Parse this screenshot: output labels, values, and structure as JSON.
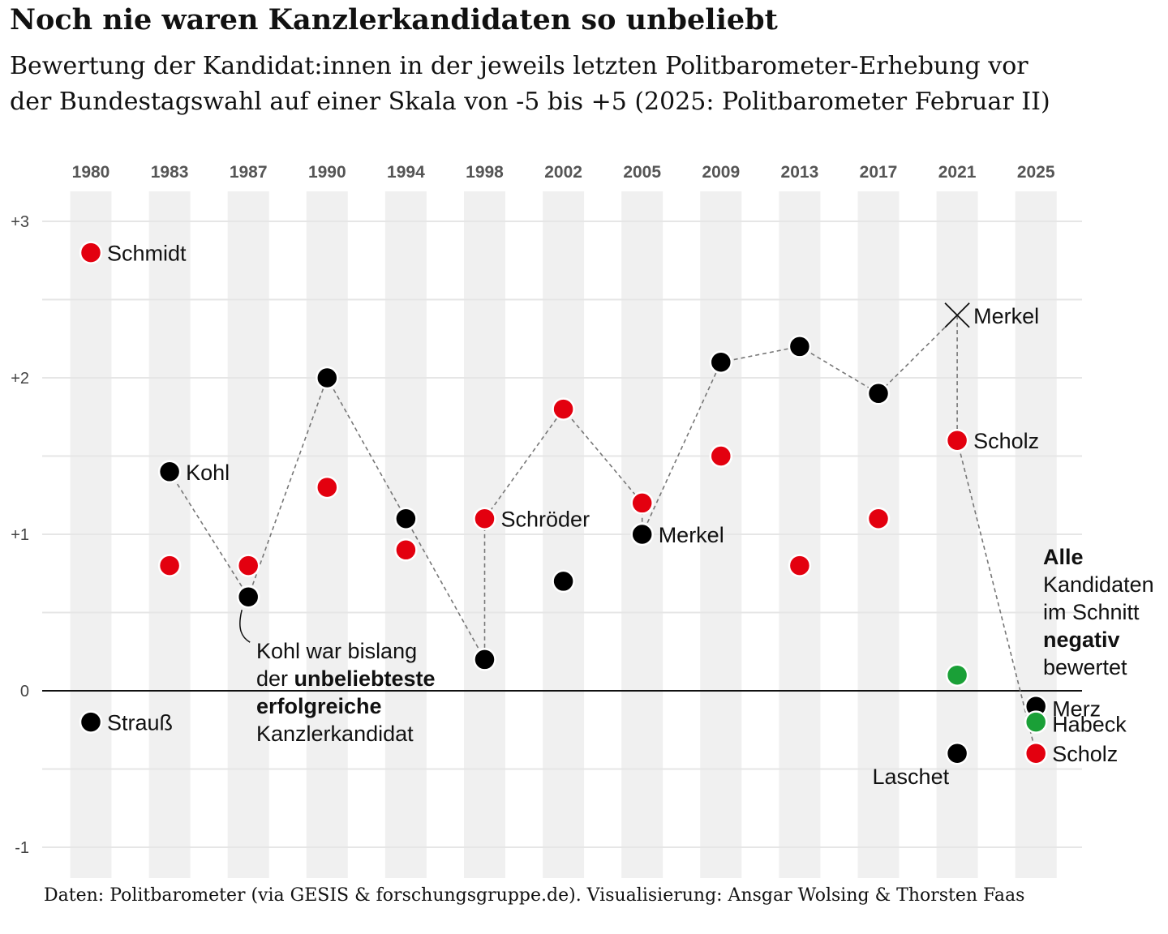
{
  "chart_data": {
    "type": "scatter",
    "title": "Noch nie waren Kanzlerkandidaten so unbeliebt",
    "subtitle": "Bewertung der Kandidat:innen in der jeweils letzten Politbarometer-Erhebung vor der Bundestagswahl auf einer Skala von -5 bis +5 (2025: Politbarometer Februar II)",
    "caption": "Daten: Politbarometer (via GESIS & forschungsgruppe.de). Visualisierung: Ansgar Wolsing & Thorsten Faas",
    "ylim": [
      -1.2,
      3.2
    ],
    "yticks": [
      {
        "value": 3,
        "label": "+3"
      },
      {
        "value": 2,
        "label": "+2"
      },
      {
        "value": 1,
        "label": "+1"
      },
      {
        "value": 0,
        "label": "0"
      },
      {
        "value": -1,
        "label": "-1"
      }
    ],
    "years": [
      "1980",
      "1983",
      "1987",
      "1990",
      "1994",
      "1998",
      "2002",
      "2005",
      "2009",
      "2013",
      "2017",
      "2021",
      "2025"
    ],
    "colors": {
      "cdu": "#000000",
      "spd": "#e3000f",
      "gruene": "#1aa037",
      "stripe": "#f0f0f0",
      "connector": "#777777"
    },
    "points": [
      {
        "year": "1980",
        "value": 2.8,
        "party": "spd",
        "label": "Schmidt"
      },
      {
        "year": "1980",
        "value": -0.2,
        "party": "cdu",
        "label": "Strauß"
      },
      {
        "year": "1983",
        "value": 1.4,
        "party": "cdu",
        "label": "Kohl"
      },
      {
        "year": "1983",
        "value": 0.8,
        "party": "spd",
        "label": ""
      },
      {
        "year": "1987",
        "value": 0.8,
        "party": "spd",
        "label": ""
      },
      {
        "year": "1987",
        "value": 0.6,
        "party": "cdu",
        "label": ""
      },
      {
        "year": "1990",
        "value": 2.0,
        "party": "cdu",
        "label": ""
      },
      {
        "year": "1990",
        "value": 1.3,
        "party": "spd",
        "label": ""
      },
      {
        "year": "1994",
        "value": 1.1,
        "party": "cdu",
        "label": ""
      },
      {
        "year": "1994",
        "value": 0.9,
        "party": "spd",
        "label": ""
      },
      {
        "year": "1998",
        "value": 1.1,
        "party": "spd",
        "label": "Schröder"
      },
      {
        "year": "1998",
        "value": 0.2,
        "party": "cdu",
        "label": ""
      },
      {
        "year": "2002",
        "value": 1.8,
        "party": "spd",
        "label": ""
      },
      {
        "year": "2002",
        "value": 0.7,
        "party": "cdu",
        "label": ""
      },
      {
        "year": "2005",
        "value": 1.2,
        "party": "spd",
        "label": ""
      },
      {
        "year": "2005",
        "value": 1.0,
        "party": "cdu",
        "label": "Merkel"
      },
      {
        "year": "2009",
        "value": 2.1,
        "party": "cdu",
        "label": ""
      },
      {
        "year": "2009",
        "value": 1.5,
        "party": "spd",
        "label": ""
      },
      {
        "year": "2013",
        "value": 2.2,
        "party": "cdu",
        "label": ""
      },
      {
        "year": "2013",
        "value": 0.8,
        "party": "spd",
        "label": ""
      },
      {
        "year": "2017",
        "value": 1.9,
        "party": "cdu",
        "label": ""
      },
      {
        "year": "2017",
        "value": 1.1,
        "party": "spd",
        "label": ""
      },
      {
        "year": "2021",
        "value": 1.6,
        "party": "spd",
        "label": "Scholz"
      },
      {
        "year": "2021",
        "value": 0.1,
        "party": "gruene",
        "label": ""
      },
      {
        "year": "2021",
        "value": -0.4,
        "party": "cdu",
        "label": "Laschet"
      },
      {
        "year": "2025",
        "value": -0.1,
        "party": "cdu",
        "label": "Merz"
      },
      {
        "year": "2025",
        "value": -0.2,
        "party": "gruene",
        "label": "Habeck"
      },
      {
        "year": "2025",
        "value": -0.4,
        "party": "spd",
        "label": "Scholz"
      }
    ],
    "cross_marker": {
      "year": "2021",
      "value": 2.4,
      "label": "Merkel"
    },
    "chancellor_path": [
      {
        "year": "1983",
        "value": 1.4
      },
      {
        "year": "1987",
        "value": 0.6
      },
      {
        "year": "1990",
        "value": 2.0
      },
      {
        "year": "1994",
        "value": 1.1
      },
      {
        "year": "1998",
        "value": 0.2
      },
      {
        "year": "1998",
        "value": 1.1
      },
      {
        "year": "2002",
        "value": 1.8
      },
      {
        "year": "2005",
        "value": 1.2
      },
      {
        "year": "2005",
        "value": 1.0
      },
      {
        "year": "2009",
        "value": 2.1
      },
      {
        "year": "2013",
        "value": 2.2
      },
      {
        "year": "2017",
        "value": 1.9
      },
      {
        "year": "2021",
        "value": 2.4
      },
      {
        "year": "2021",
        "value": 1.6
      },
      {
        "year": "2025",
        "value": -0.4
      }
    ],
    "annotation_kohl": {
      "line1": "Kohl war bislang",
      "line2_pre": "der ",
      "line2_bold": "unbeliebteste",
      "line3_bold": "erfolgreiche",
      "line4": "Kanzlerkandidat"
    },
    "annotation_2025": {
      "line1_bold": "Alle",
      "line2": "Kandidaten",
      "line3": "im Schnitt",
      "line4_bold": "negativ",
      "line5": "bewertet"
    }
  }
}
